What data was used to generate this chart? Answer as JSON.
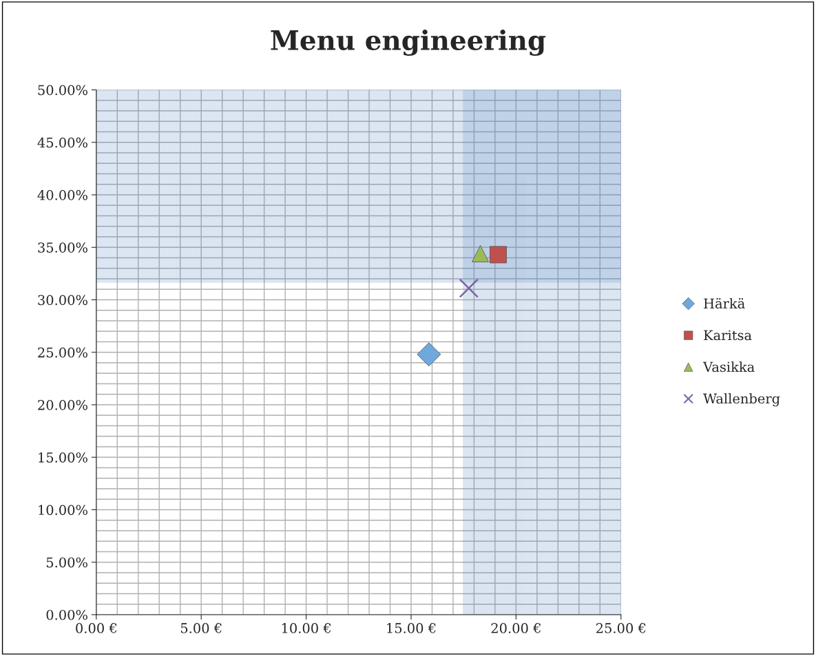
{
  "chart_data": {
    "type": "scatter",
    "title": "Menu engineering",
    "xlim": [
      0,
      25
    ],
    "xticks": [
      {
        "value": 0,
        "label": "0.00 €"
      },
      {
        "value": 5,
        "label": "5.00 €"
      },
      {
        "value": 10,
        "label": "10.00 €"
      },
      {
        "value": 15,
        "label": "15.00 €"
      },
      {
        "value": 20,
        "label": "20.00 €"
      },
      {
        "value": 25,
        "label": "25.00 €"
      }
    ],
    "ylim": [
      0,
      50
    ],
    "yticks": [
      {
        "value": 0,
        "label": "0.00%"
      },
      {
        "value": 5,
        "label": "5.00%"
      },
      {
        "value": 10,
        "label": "10.00%"
      },
      {
        "value": 15,
        "label": "15.00%"
      },
      {
        "value": 20,
        "label": "20.00%"
      },
      {
        "value": 25,
        "label": "25.00%"
      },
      {
        "value": 30,
        "label": "30.00%"
      },
      {
        "value": 35,
        "label": "35.00%"
      },
      {
        "value": 40,
        "label": "40.00%"
      },
      {
        "value": 45,
        "label": "45.00%"
      },
      {
        "value": 50,
        "label": "50.00%"
      }
    ],
    "grid": true,
    "legend": "right",
    "bands": [
      {
        "axis": "y",
        "from": 31.7,
        "to": 50,
        "color": "#4f81bd"
      },
      {
        "axis": "x",
        "from": 17.5,
        "to": 25,
        "color": "#4f81bd"
      }
    ],
    "series": [
      {
        "name": "Härkä",
        "color": "#6fa8dc",
        "marker": "diamond",
        "x": [
          15.85
        ],
        "values": [
          24.8
        ]
      },
      {
        "name": "Karitsa",
        "color": "#c0504d",
        "marker": "square",
        "x": [
          19.15
        ],
        "values": [
          34.3
        ]
      },
      {
        "name": "Vasikka",
        "color": "#9bbb59",
        "marker": "triangle",
        "x": [
          18.3
        ],
        "values": [
          34.4
        ]
      },
      {
        "name": "Wallenberg",
        "color": "#8064a2",
        "marker": "cross",
        "x": [
          17.75
        ],
        "values": [
          31.1
        ]
      }
    ]
  }
}
